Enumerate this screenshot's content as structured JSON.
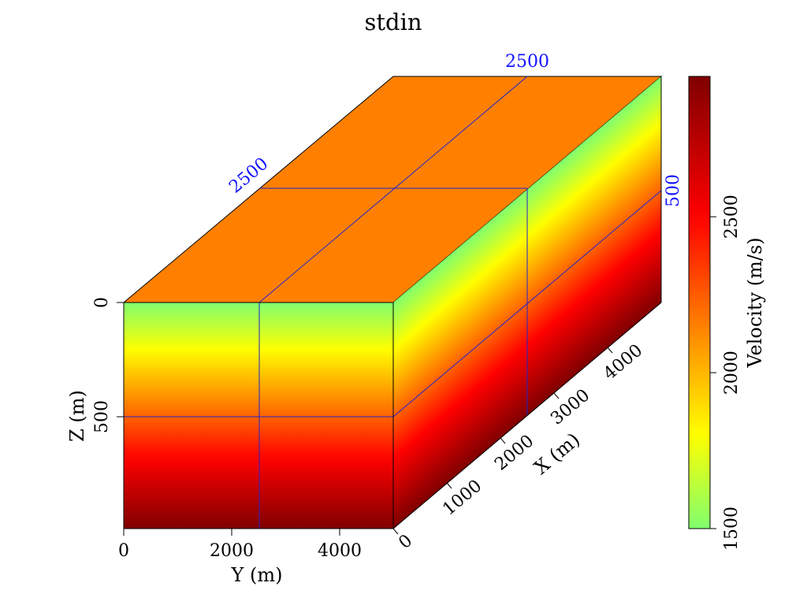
{
  "chart_data": {
    "type": "heatmap",
    "title": "stdin",
    "xlabel": "Y (m)",
    "ylabel": "Z (m)",
    "depth_label": "X (m)",
    "y_ticks": [
      "0",
      "2000",
      "4000"
    ],
    "z_ticks": [
      "0",
      "500"
    ],
    "x_ticks": [
      "0",
      "1000",
      "2000",
      "3000",
      "4000"
    ],
    "slice_labels": {
      "top_y": "2500",
      "top_x": "2500",
      "side_z": "500"
    },
    "colorbar": {
      "label": "Velocity (m/s)",
      "ticks": [
        "1500",
        "2000",
        "2500"
      ],
      "tick_values": [
        1500,
        2000,
        2500
      ],
      "range": [
        1500,
        2950
      ]
    },
    "top_face_velocity": 2150,
    "velocity_profile_vs_depth": {
      "z": [
        0,
        1000
      ],
      "velocity": [
        1500,
        2950
      ]
    },
    "colormap_stops": [
      {
        "v": 1500,
        "color": "#80ff6e"
      },
      {
        "v": 1800,
        "color": "#ffff00"
      },
      {
        "v": 2150,
        "color": "#ff8000"
      },
      {
        "v": 2500,
        "color": "#ff0000"
      },
      {
        "v": 2950,
        "color": "#800000"
      }
    ],
    "slice_line_color": "#2323c8",
    "annotation_color": "#1414ff"
  }
}
